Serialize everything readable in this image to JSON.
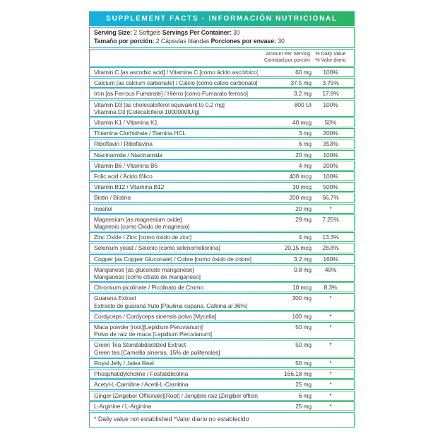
{
  "title": "SUPPLEMENT FACTS - INFORMACIÓN NUTRICIONAL",
  "serving": {
    "line1": {
      "label1": "Serving Size:",
      "value1": " 2 Softgels ",
      "label2": "Servings Per Container:",
      "value2": " 30"
    },
    "line2": {
      "label1": "Tamaño por porción:",
      "value1": " 2 Cápsulas blandas ",
      "label2": "Porciones por envase:",
      "value2": " 30"
    }
  },
  "columns": {
    "amount_en": "Amount Per Serving",
    "amount_es": "Cantidad por porción",
    "dv_en": "% Daily Value",
    "dv_es": "% Valor diario"
  },
  "rows": [
    {
      "lines": [
        "Vitamin C [as ascorbic acid] / Vitamina C [como ácido ascórbico]"
      ],
      "amount": "60 mg",
      "dv": "100%"
    },
    {
      "lines": [
        "Calcium [as calcium carbonate] / Calcio [como calcio carbonato]"
      ],
      "amount": "37.5 mg",
      "dv": "3.75%"
    },
    {
      "lines": [
        "Iron [as Ferrous Fumarate] / Hierro [como Fumarato ferroso]"
      ],
      "amount": "3.2 mg",
      "dv": "17.8%"
    },
    {
      "lines": [
        "Vitamin D3 [as cholecalciferol equivalent to 0.2 mg]",
        "Vitamina D3 [Colecalciferol 1000000IU/g]"
      ],
      "amount": "800 UI",
      "dv": "100%"
    },
    {
      "lines": [
        "Vitamin K1 / Vitamina K1"
      ],
      "amount": "40 mcg",
      "dv": "50%"
    },
    {
      "lines": [
        "Thiamina Clorhidrate / Tiamina HCL"
      ],
      "amount": "3 mg",
      "dv": "200%"
    },
    {
      "lines": [
        "Riboflavin / Riboflavina"
      ],
      "amount": "6 mg",
      "dv": "353%"
    },
    {
      "lines": [
        "Niacinamide / Niacinamida"
      ],
      "amount": "20 mg",
      "dv": "100%"
    },
    {
      "lines": [
        "Vitamin B6 / Vitamina B6"
      ],
      "amount": "4 mg",
      "dv": "200%"
    },
    {
      "lines": [
        "Folic acid / Ácido fólico"
      ],
      "amount": "400 mcg",
      "dv": "100%"
    },
    {
      "lines": [
        "Vitamin B12 / Vitamina B12"
      ],
      "amount": "30 mcg",
      "dv": "500%"
    },
    {
      "lines": [
        "Biotin / Biotina"
      ],
      "amount": "200 mcg",
      "dv": "66.7%"
    },
    {
      "lines": [
        "Inositol"
      ],
      "amount": "20 mg",
      "dv": "*"
    },
    {
      "lines": [
        "Magnesium [as magnesium oxide]",
        "Magnesio [como Óxido de magnesio]"
      ],
      "amount": "29 mg",
      "dv": "7.25%"
    },
    {
      "lines": [
        "Zinc Oxide / Zinc [como óxido de zinc]"
      ],
      "amount": "4 mg",
      "dv": "13.3%"
    },
    {
      "lines": [
        "Selenium yeast / Selenio [como selenometionina]"
      ],
      "amount": "20.15 mcg",
      "dv": "28.8%"
    },
    {
      "lines": [
        "Copper [as Copper Gluconate] / Cobre [como óxido de cobre]"
      ],
      "amount": "3.2 mg",
      "dv": "160%"
    },
    {
      "lines": [
        "Manganese [as gluconate manganese]",
        "Manganeso [como citrato de manganeso]"
      ],
      "amount": "0.8 mg",
      "dv": "40%"
    },
    {
      "lines": [
        "Chromium picolinate / Picolinato de Cromo"
      ],
      "amount": "10 mcg",
      "dv": "8.3%"
    },
    {
      "lines": [
        "Guarana Extract",
        "Extracto de guaraná fruto [Paulinia cupana, Cafeina al 36%]"
      ],
      "amount": "300 mg",
      "dv": "*"
    },
    {
      "lines": [
        "Cordyceps / Cordyceps sinensis polvo [Mycelia]"
      ],
      "amount": "100 mg",
      "dv": "*"
    },
    {
      "lines": [
        "Maca powder [root][Lepidium Peruvianum]",
        "Polvo de raiz de maca [Lepidium Peruvianum]"
      ],
      "amount": "50 mg",
      "dv": "*"
    },
    {
      "lines": [
        "Green Tea Standabdardized Extract",
        "Green tea [Camellia sinersis, 15% de polifenoles]"
      ],
      "amount": "50 mg",
      "dv": "*"
    },
    {
      "lines": [
        "Royal Jelly / Jalea Real"
      ],
      "amount": "50 mg",
      "dv": "*"
    },
    {
      "lines": [
        "Phosphatidylcholine / Fosfatidilcolina"
      ],
      "amount": "166.18 mg",
      "dv": "*"
    },
    {
      "lines": [
        "Acetyl-L-Carnitine / Acetil-L-Carnitina"
      ],
      "amount": "25 mg",
      "dv": "*"
    },
    {
      "lines": [
        "Ginger [Zingeber Officinale][Root] / Jengibre raiz [Zingiber officinale]"
      ],
      "amount": "6 mg",
      "dv": "*"
    },
    {
      "lines": [
        "L-Arginine / L-Arginina"
      ],
      "amount": "25 mg",
      "dv": "*"
    }
  ],
  "footnote": "* Daily value not established *Valor diario no establecido",
  "colors": {
    "header_gradient_left": "#14b0e0",
    "header_gradient_right": "#2db463",
    "border_gradient_left": "#29b0df",
    "border_gradient_right": "#2db463",
    "text": "#414042"
  }
}
